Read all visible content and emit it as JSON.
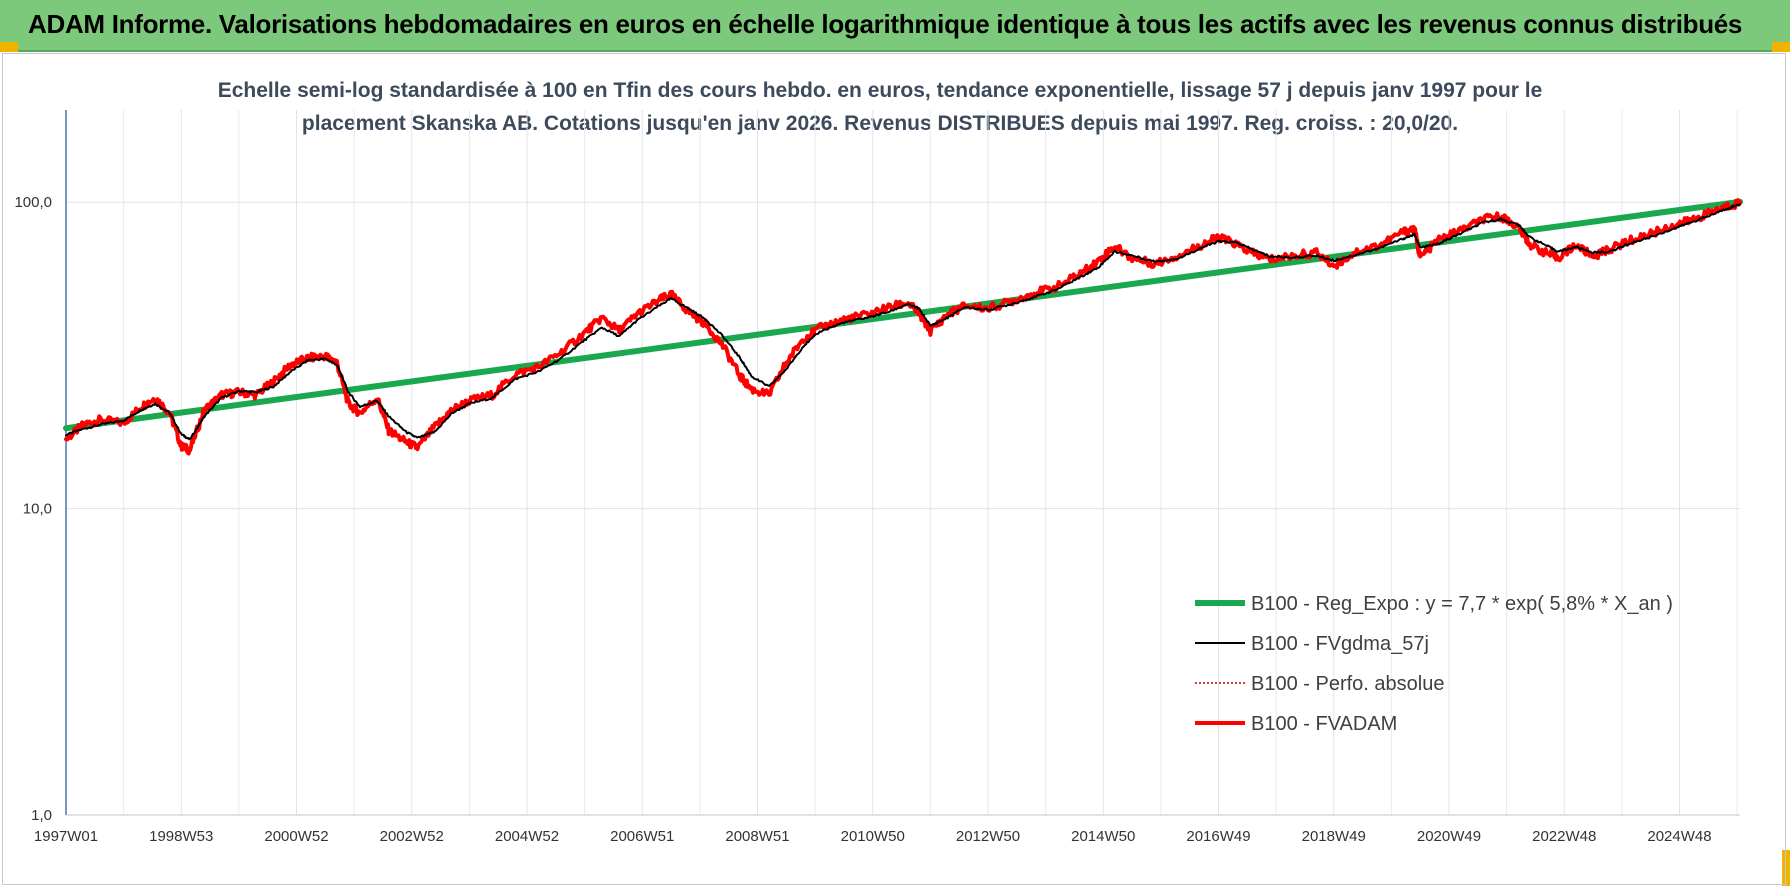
{
  "banner": {
    "title": "ADAM Informe. Valorisations hebdomadaires en euros en échelle logarithmique identique à tous les actifs avec les revenus connus distribués"
  },
  "colors": {
    "banner_bg": "#7dc97b",
    "regression": "#1aa84e",
    "fvgdma": "#000000",
    "perfo": "#c00000",
    "fvadam": "#ff0000"
  },
  "chart_data": {
    "type": "line",
    "title": "Echelle semi-log standardisée à 100 en Tfin des cours hebdo. en euros, tendance exponentielle, lissage 57 j depuis janv 1997 pour le placement Skanska AB. Cotations jusqu'en janv 2026. Revenus DISTRIBUES depuis mai 1997. Reg. croiss. : 20,0/20.",
    "y_scale": "log",
    "ylim": [
      1,
      200
    ],
    "xlim": [
      1997.0,
      2026.05
    ],
    "y_ticks": [
      {
        "value": 1,
        "label": "1,0"
      },
      {
        "value": 10,
        "label": "10,0"
      },
      {
        "value": 100,
        "label": "100,0"
      }
    ],
    "x_ticks": [
      {
        "year": 1997.0,
        "label": "1997W01"
      },
      {
        "year": 1999.0,
        "label": "1998W53"
      },
      {
        "year": 2001.0,
        "label": "2000W52"
      },
      {
        "year": 2003.0,
        "label": "2002W52"
      },
      {
        "year": 2005.0,
        "label": "2004W52"
      },
      {
        "year": 2007.0,
        "label": "2006W51"
      },
      {
        "year": 2009.0,
        "label": "2008W51"
      },
      {
        "year": 2011.0,
        "label": "2010W50"
      },
      {
        "year": 2013.0,
        "label": "2012W50"
      },
      {
        "year": 2015.0,
        "label": "2014W50"
      },
      {
        "year": 2017.0,
        "label": "2016W49"
      },
      {
        "year": 2019.0,
        "label": "2018W49"
      },
      {
        "year": 2021.0,
        "label": "2020W49"
      },
      {
        "year": 2023.0,
        "label": "2022W48"
      },
      {
        "year": 2025.0,
        "label": "2024W48"
      }
    ],
    "grid": true,
    "legend_position": "bottom-right",
    "series": [
      {
        "name": "B100 - Reg_Expo : y = 7,7 * exp( 5,8% *  X_an )",
        "style": "thick-green",
        "points": [
          [
            1997.0,
            18.3
          ],
          [
            2026.05,
            100.3
          ]
        ]
      },
      {
        "name": "B100 - FVgdma_57j",
        "style": "thin-black",
        "points": [
          [
            1997.0,
            17.4
          ],
          [
            1997.3,
            18.2
          ],
          [
            1997.6,
            18.8
          ],
          [
            1998.0,
            19.4
          ],
          [
            1998.3,
            21.0
          ],
          [
            1998.55,
            22.0
          ],
          [
            1998.8,
            20.5
          ],
          [
            1999.0,
            17.5
          ],
          [
            1999.15,
            16.8
          ],
          [
            1999.4,
            20.0
          ],
          [
            1999.7,
            23.0
          ],
          [
            2000.0,
            24.2
          ],
          [
            2000.3,
            24.0
          ],
          [
            2000.6,
            25.0
          ],
          [
            2000.9,
            28.0
          ],
          [
            2001.2,
            30.5
          ],
          [
            2001.5,
            30.8
          ],
          [
            2001.7,
            29.5
          ],
          [
            2001.9,
            24.0
          ],
          [
            2002.1,
            21.5
          ],
          [
            2002.4,
            22.5
          ],
          [
            2002.6,
            20.0
          ],
          [
            2002.9,
            17.8
          ],
          [
            2003.1,
            17.0
          ],
          [
            2003.4,
            17.8
          ],
          [
            2003.7,
            20.5
          ],
          [
            2004.0,
            22.0
          ],
          [
            2004.4,
            23.0
          ],
          [
            2004.8,
            26.5
          ],
          [
            2005.2,
            28.0
          ],
          [
            2005.6,
            31.0
          ],
          [
            2006.0,
            35.5
          ],
          [
            2006.3,
            39.0
          ],
          [
            2006.6,
            36.5
          ],
          [
            2006.9,
            41.0
          ],
          [
            2007.3,
            46.0
          ],
          [
            2007.5,
            48.5
          ],
          [
            2007.8,
            45.0
          ],
          [
            2008.1,
            41.5
          ],
          [
            2008.4,
            36.5
          ],
          [
            2008.7,
            31.0
          ],
          [
            2008.9,
            27.0
          ],
          [
            2009.2,
            25.0
          ],
          [
            2009.5,
            28.5
          ],
          [
            2009.8,
            34.0
          ],
          [
            2010.1,
            38.0
          ],
          [
            2010.5,
            40.5
          ],
          [
            2010.9,
            42.0
          ],
          [
            2011.3,
            44.0
          ],
          [
            2011.6,
            46.5
          ],
          [
            2011.8,
            45.0
          ],
          [
            2012.0,
            39.5
          ],
          [
            2012.3,
            42.0
          ],
          [
            2012.6,
            45.5
          ],
          [
            2013.0,
            44.5
          ],
          [
            2013.4,
            46.5
          ],
          [
            2013.8,
            49.0
          ],
          [
            2014.2,
            52.0
          ],
          [
            2014.6,
            57.0
          ],
          [
            2014.9,
            61.0
          ],
          [
            2015.2,
            69.0
          ],
          [
            2015.5,
            67.0
          ],
          [
            2015.9,
            64.0
          ],
          [
            2016.3,
            65.5
          ],
          [
            2016.7,
            71.0
          ],
          [
            2017.0,
            74.5
          ],
          [
            2017.3,
            74.0
          ],
          [
            2017.6,
            70.0
          ],
          [
            2017.9,
            66.5
          ],
          [
            2018.3,
            66.0
          ],
          [
            2018.7,
            67.0
          ],
          [
            2019.0,
            64.5
          ],
          [
            2019.4,
            67.5
          ],
          [
            2019.8,
            71.0
          ],
          [
            2020.2,
            76.0
          ],
          [
            2020.4,
            78.5
          ],
          [
            2020.5,
            71.0
          ],
          [
            2020.8,
            73.0
          ],
          [
            2021.2,
            79.0
          ],
          [
            2021.6,
            86.0
          ],
          [
            2021.9,
            88.0
          ],
          [
            2022.2,
            84.5
          ],
          [
            2022.4,
            77.0
          ],
          [
            2022.7,
            72.0
          ],
          [
            2022.9,
            69.0
          ],
          [
            2023.2,
            71.5
          ],
          [
            2023.5,
            68.5
          ],
          [
            2023.8,
            69.0
          ],
          [
            2024.1,
            73.0
          ],
          [
            2024.5,
            77.0
          ],
          [
            2024.9,
            82.0
          ],
          [
            2025.2,
            86.0
          ],
          [
            2025.5,
            90.0
          ],
          [
            2025.8,
            95.0
          ],
          [
            2026.05,
            98.5
          ]
        ]
      },
      {
        "name": "B100 - Perfo. absolue",
        "style": "dotted-darkred",
        "points": []
      },
      {
        "name": "B100 - FVADAM",
        "style": "thick-red",
        "points": [
          [
            1997.0,
            16.8
          ],
          [
            1997.3,
            18.8
          ],
          [
            1997.6,
            19.5
          ],
          [
            1998.0,
            19.0
          ],
          [
            1998.3,
            21.5
          ],
          [
            1998.55,
            23.0
          ],
          [
            1998.8,
            20.5
          ],
          [
            1999.0,
            16.0
          ],
          [
            1999.15,
            15.5
          ],
          [
            1999.4,
            21.0
          ],
          [
            1999.7,
            23.5
          ],
          [
            2000.0,
            24.0
          ],
          [
            2000.3,
            23.5
          ],
          [
            2000.6,
            26.0
          ],
          [
            2000.9,
            29.5
          ],
          [
            2001.2,
            31.0
          ],
          [
            2001.5,
            31.5
          ],
          [
            2001.7,
            30.0
          ],
          [
            2001.9,
            22.0
          ],
          [
            2002.1,
            20.5
          ],
          [
            2002.4,
            23.0
          ],
          [
            2002.6,
            18.0
          ],
          [
            2002.9,
            16.5
          ],
          [
            2003.1,
            15.8
          ],
          [
            2003.4,
            18.5
          ],
          [
            2003.7,
            21.0
          ],
          [
            2004.0,
            22.5
          ],
          [
            2004.4,
            23.5
          ],
          [
            2004.8,
            27.5
          ],
          [
            2005.2,
            29.0
          ],
          [
            2005.6,
            32.5
          ],
          [
            2006.0,
            37.5
          ],
          [
            2006.3,
            42.0
          ],
          [
            2006.6,
            38.0
          ],
          [
            2006.9,
            43.0
          ],
          [
            2007.3,
            48.0
          ],
          [
            2007.5,
            50.0
          ],
          [
            2007.8,
            44.0
          ],
          [
            2008.1,
            40.0
          ],
          [
            2008.4,
            34.0
          ],
          [
            2008.7,
            27.0
          ],
          [
            2008.9,
            24.5
          ],
          [
            2009.2,
            23.5
          ],
          [
            2009.5,
            30.0
          ],
          [
            2009.8,
            36.0
          ],
          [
            2010.1,
            39.0
          ],
          [
            2010.5,
            41.5
          ],
          [
            2010.9,
            43.0
          ],
          [
            2011.3,
            45.5
          ],
          [
            2011.6,
            47.0
          ],
          [
            2011.8,
            43.5
          ],
          [
            2012.0,
            38.0
          ],
          [
            2012.3,
            43.0
          ],
          [
            2012.6,
            46.0
          ],
          [
            2013.0,
            45.0
          ],
          [
            2013.4,
            47.5
          ],
          [
            2013.8,
            50.5
          ],
          [
            2014.2,
            53.0
          ],
          [
            2014.6,
            58.5
          ],
          [
            2014.9,
            64.0
          ],
          [
            2015.2,
            72.0
          ],
          [
            2015.5,
            65.5
          ],
          [
            2015.9,
            63.0
          ],
          [
            2016.3,
            67.0
          ],
          [
            2016.7,
            72.5
          ],
          [
            2017.0,
            77.0
          ],
          [
            2017.3,
            73.0
          ],
          [
            2017.6,
            68.0
          ],
          [
            2017.9,
            65.0
          ],
          [
            2018.3,
            67.0
          ],
          [
            2018.7,
            68.5
          ],
          [
            2019.0,
            62.0
          ],
          [
            2019.4,
            69.0
          ],
          [
            2019.8,
            72.5
          ],
          [
            2020.2,
            80.0
          ],
          [
            2020.4,
            82.0
          ],
          [
            2020.5,
            66.0
          ],
          [
            2020.8,
            75.0
          ],
          [
            2021.2,
            81.0
          ],
          [
            2021.6,
            88.0
          ],
          [
            2021.9,
            90.0
          ],
          [
            2022.2,
            83.0
          ],
          [
            2022.4,
            73.0
          ],
          [
            2022.7,
            68.0
          ],
          [
            2022.9,
            66.0
          ],
          [
            2023.2,
            72.5
          ],
          [
            2023.5,
            66.5
          ],
          [
            2023.8,
            70.5
          ],
          [
            2024.1,
            74.5
          ],
          [
            2024.5,
            79.0
          ],
          [
            2024.9,
            84.0
          ],
          [
            2025.2,
            87.5
          ],
          [
            2025.5,
            92.0
          ],
          [
            2025.8,
            96.5
          ],
          [
            2026.05,
            100.0
          ]
        ]
      }
    ]
  }
}
